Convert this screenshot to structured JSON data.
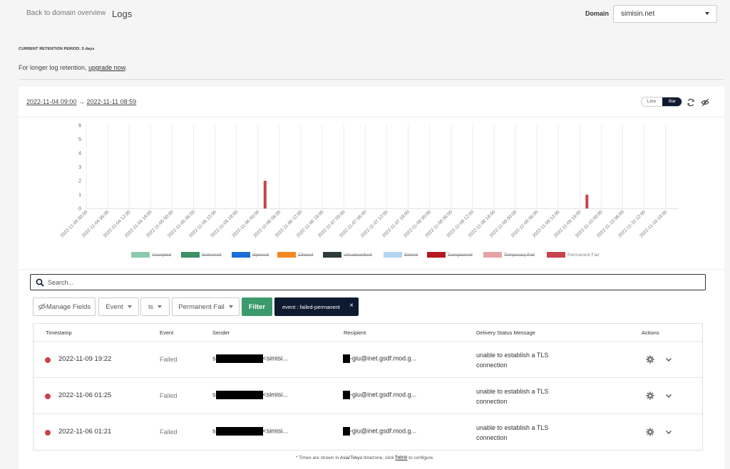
{
  "header": {
    "back_label": "Back to domain overview",
    "page_title": "Logs",
    "domain_label": "Domain",
    "domain_value": "simisin.net"
  },
  "retention": {
    "label": "CURRENT RETENTION PERIOD: 5 days",
    "longer_text": "For longer log retention,",
    "upgrade_link": "upgrade now",
    "period_suffix": "."
  },
  "date_range": {
    "start": "2022-11-04 09:00",
    "arrow": "→",
    "end": "2022-11-11 08:59"
  },
  "view_toggle": {
    "line_label": "Line",
    "bar_label": "Bar",
    "selected": "Bar"
  },
  "icons": {
    "refresh": "refresh-icon",
    "hide": "eye-slash-icon",
    "search": "search-icon",
    "settings": "gear-icon",
    "expand": "chevron-down-icon",
    "manage": "eye-slash-icon"
  },
  "colors": {
    "accepted": "#8cc9ab",
    "delivered": "#3d8f66",
    "opened": "#1b6fd6",
    "clicked": "#f4881f",
    "unsubscribed": "#2f3c3c",
    "stored": "#b4d6f2",
    "complained": "#b5191f",
    "temporary_fail": "#e5a3a5",
    "permanent_fail": "#c9434d",
    "filter_button": "#3c9a6c",
    "chip": "#0e1a2f"
  },
  "chart_data": {
    "type": "bar",
    "ylim": [
      0,
      6
    ],
    "yticks": [
      "0",
      "1",
      "2",
      "3",
      "4",
      "5",
      "6"
    ],
    "categories": [
      "2022-11-04 00:00",
      "2022-11-04 06:00",
      "2022-11-04 12:00",
      "2022-11-04 18:00",
      "2022-11-05 00:00",
      "2022-11-05 06:00",
      "2022-11-05 12:00",
      "2022-11-05 18:00",
      "2022-11-06 00:00",
      "2022-11-06 06:00",
      "2022-11-06 12:00",
      "2022-11-06 18:00",
      "2022-11-07 00:00",
      "2022-11-07 06:00",
      "2022-11-07 12:00",
      "2022-11-07 18:00",
      "2022-11-08 00:00",
      "2022-11-08 06:00",
      "2022-11-08 12:00",
      "2022-11-08 18:00",
      "2022-11-09 00:00",
      "2022-11-09 06:00",
      "2022-11-09 12:00",
      "2022-11-09 18:00",
      "2022-11-10 00:00",
      "2022-11-10 06:00",
      "2022-11-10 12:00",
      "2022-11-10 18:00"
    ],
    "series": [
      {
        "name": "Permanent Fail",
        "values": [
          0,
          0,
          0,
          0,
          0,
          0,
          0,
          0,
          2,
          0,
          0,
          0,
          0,
          0,
          0,
          0,
          0,
          0,
          0,
          0,
          0,
          0,
          0,
          1,
          0,
          0,
          0,
          0
        ]
      }
    ],
    "legend": [
      {
        "name": "Accepted",
        "key": "accepted",
        "struck": true
      },
      {
        "name": "Delivered",
        "key": "delivered",
        "struck": true
      },
      {
        "name": "Opened",
        "key": "opened",
        "struck": true
      },
      {
        "name": "Clicked",
        "key": "clicked",
        "struck": true
      },
      {
        "name": "Unsubscribed",
        "key": "unsubscribed",
        "struck": true
      },
      {
        "name": "Stored",
        "key": "stored",
        "struck": true
      },
      {
        "name": "Complained",
        "key": "complained",
        "struck": true
      },
      {
        "name": "Temporary Fail",
        "key": "temporary_fail",
        "struck": true
      },
      {
        "name": "Permanent Fail",
        "key": "permanent_fail",
        "struck": false
      }
    ],
    "legend_position": "bottom",
    "grid": true
  },
  "search": {
    "placeholder": "Search..."
  },
  "filters": {
    "manage_fields": "Manage Fields",
    "field": "Event",
    "operator": "is",
    "value": "Permanent Fail",
    "filter_button": "Filter",
    "chip": "event : failed-permanent",
    "chip_close": "×"
  },
  "table": {
    "headers": [
      "Timestamp",
      "Event",
      "Sender",
      "Recipient",
      "Delivery Status Message",
      "Actions"
    ],
    "rows": [
      {
        "timestamp": "2022-11-09 19:22",
        "event": "Failed",
        "sender_prefix": "s",
        "sender_suffix": "<simisi...",
        "recipient_suffix": "-giu@inet.gsdf.mod.g...",
        "message": "unable to establish a TLS connection"
      },
      {
        "timestamp": "2022-11-06 01:25",
        "event": "Failed",
        "sender_prefix": "s",
        "sender_suffix": "<simisi...",
        "recipient_suffix": "-giu@inet.gsdf.mod.g...",
        "message": "unable to establish a TLS connection"
      },
      {
        "timestamp": "2022-11-06 01:21",
        "event": "Failed",
        "sender_prefix": "s",
        "sender_suffix": "<simisi...",
        "recipient_suffix": "-giu@inet.gsdf.mod.g...",
        "message": "unable to establish a TLS connection"
      }
    ]
  },
  "footnote": {
    "prefix": "* Times are shown in",
    "timezone": "Asia/Tokyo",
    "middle": "timezone, click",
    "link": "here",
    "suffix": "to configure."
  }
}
